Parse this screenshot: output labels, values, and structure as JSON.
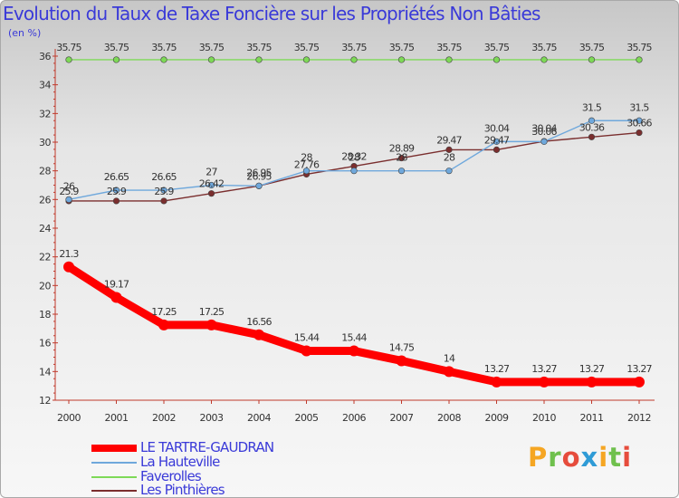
{
  "chart_data": {
    "type": "line",
    "title": "Evolution du Taux de Taxe Foncière sur les Propriétés Non Bâties",
    "ylabel": "(en %)",
    "xlabel": "",
    "ylim": [
      12,
      36
    ],
    "yticks": [
      12,
      14,
      16,
      18,
      20,
      22,
      24,
      26,
      28,
      30,
      32,
      34,
      36
    ],
    "categories": [
      "2000",
      "2001",
      "2002",
      "2003",
      "2004",
      "2005",
      "2006",
      "2007",
      "2008",
      "2009",
      "2010",
      "2011",
      "2012"
    ],
    "grid": false,
    "legend_position": "bottom-left",
    "series": [
      {
        "name": "LE TARTRE-GAUDRAN",
        "color": "#ff0000",
        "values": [
          21.3,
          19.17,
          17.25,
          17.25,
          16.56,
          15.44,
          15.44,
          14.75,
          14,
          13.27,
          13.27,
          13.27,
          13.27
        ],
        "labels": [
          "21.3",
          "19.17",
          "17.25",
          "17.25",
          "16.56",
          "15.44",
          "15.44",
          "14.75",
          "14",
          "13.27",
          "13.27",
          "13.27",
          "13.27"
        ]
      },
      {
        "name": "La Hauteville",
        "color": "#6fa8dc",
        "values": [
          26,
          26.65,
          26.65,
          27,
          26.95,
          28,
          28,
          28,
          28,
          30.04,
          30.04,
          31.5,
          31.5
        ],
        "labels": [
          "26",
          "26.65",
          "26.65",
          "27",
          "26.95",
          "28",
          "28",
          "28",
          "28",
          "30.04",
          "30.04",
          "31.5",
          "31.5"
        ]
      },
      {
        "name": "Faverolles",
        "color": "#7ed957",
        "values": [
          35.75,
          35.75,
          35.75,
          35.75,
          35.75,
          35.75,
          35.75,
          35.75,
          35.75,
          35.75,
          35.75,
          35.75,
          35.75
        ],
        "labels": [
          "35.75",
          "35.75",
          "35.75",
          "35.75",
          "35.75",
          "35.75",
          "35.75",
          "35.75",
          "35.75",
          "35.75",
          "35.75",
          "35.75",
          "35.75"
        ]
      },
      {
        "name": "Les Pinthières",
        "color": "#7a2e2e",
        "values": [
          25.9,
          25.9,
          25.9,
          26.42,
          26.95,
          27.76,
          28.32,
          28.89,
          29.47,
          29.47,
          30.06,
          30.36,
          30.66
        ],
        "labels": [
          "25.9",
          "25.9",
          "25.9",
          "26.42",
          "26.95",
          "27.76",
          "28.32",
          "28.89",
          "29.47",
          "29.47",
          "30.06",
          "30.36",
          "30.66"
        ]
      }
    ]
  },
  "logo": {
    "letters": [
      "P",
      "r",
      "o",
      "x",
      "i",
      "t",
      "i"
    ],
    "colors": [
      "#f5a623",
      "#6fc04d",
      "#e64c3c",
      "#2f9bd6",
      "#f5a623",
      "#6fc04d",
      "#e64c3c"
    ]
  }
}
